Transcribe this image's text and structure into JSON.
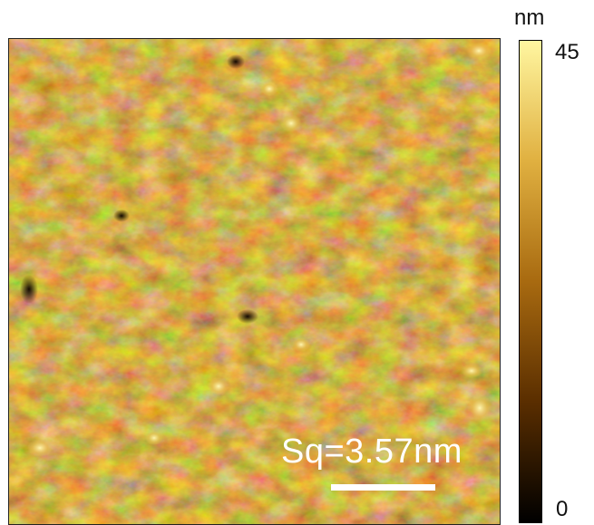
{
  "afm_image": {
    "roughness_label": "Sq=3.57nm"
  },
  "colorbar": {
    "unit": "nm",
    "max_label": "45",
    "min_label": "0",
    "colors": [
      "#000000",
      "#5a2e00",
      "#a86a10",
      "#e0b040",
      "#fff6a0"
    ]
  }
}
